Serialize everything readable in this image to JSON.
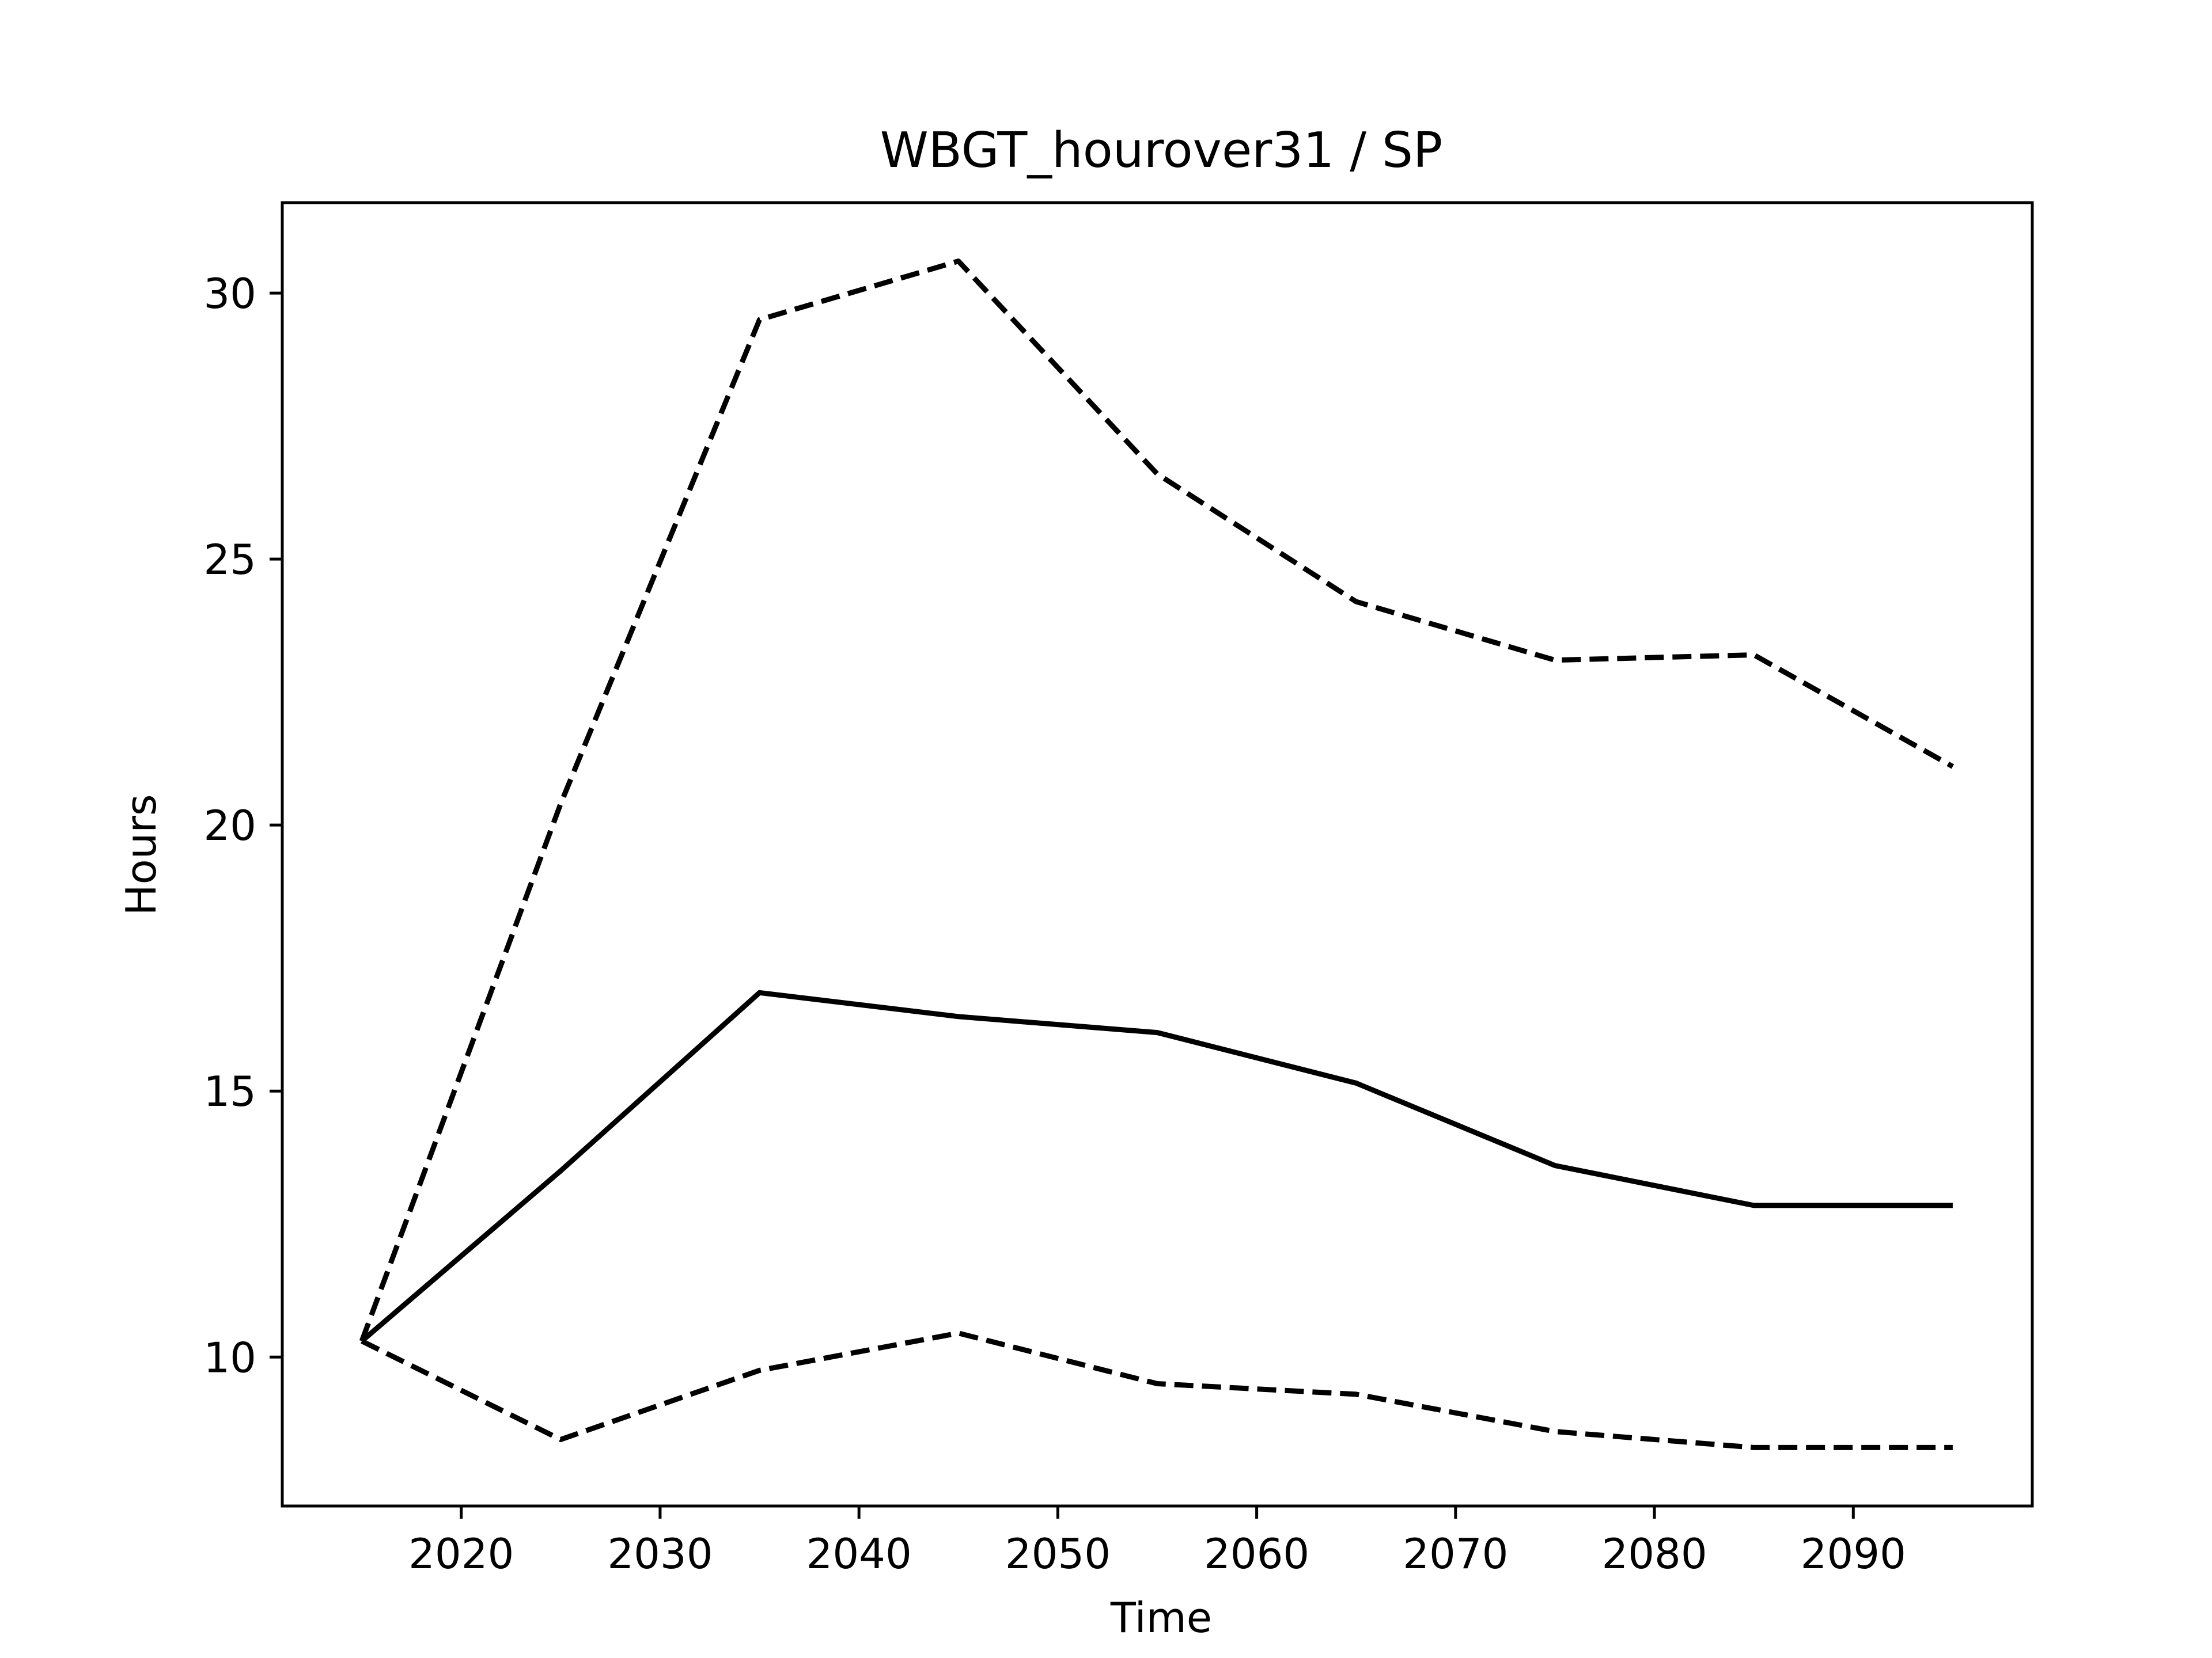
{
  "chart_data": {
    "type": "line",
    "title": "WBGT_hourover31 / SP",
    "xlabel": "Time",
    "ylabel": "Hours",
    "xlim": [
      2011,
      2099
    ],
    "ylim": [
      7.2,
      31.7
    ],
    "xticks": [
      2020,
      2030,
      2040,
      2050,
      2060,
      2070,
      2080,
      2090
    ],
    "yticks": [
      10,
      15,
      20,
      25,
      30
    ],
    "grid": false,
    "x": [
      2015,
      2025,
      2035,
      2045,
      2055,
      2065,
      2075,
      2085,
      2095
    ],
    "series": [
      {
        "style": "dashed",
        "color": "#000000",
        "values": [
          10.3,
          20.4,
          29.5,
          30.6,
          26.6,
          24.2,
          23.1,
          23.2,
          21.1
        ]
      },
      {
        "style": "solid",
        "color": "#000000",
        "values": [
          10.3,
          13.5,
          16.85,
          16.4,
          16.1,
          15.15,
          13.6,
          12.85,
          12.85
        ]
      },
      {
        "style": "dashed",
        "color": "#000000",
        "values": [
          10.3,
          8.45,
          9.75,
          10.45,
          9.5,
          9.3,
          8.6,
          8.3,
          8.3
        ]
      }
    ]
  }
}
